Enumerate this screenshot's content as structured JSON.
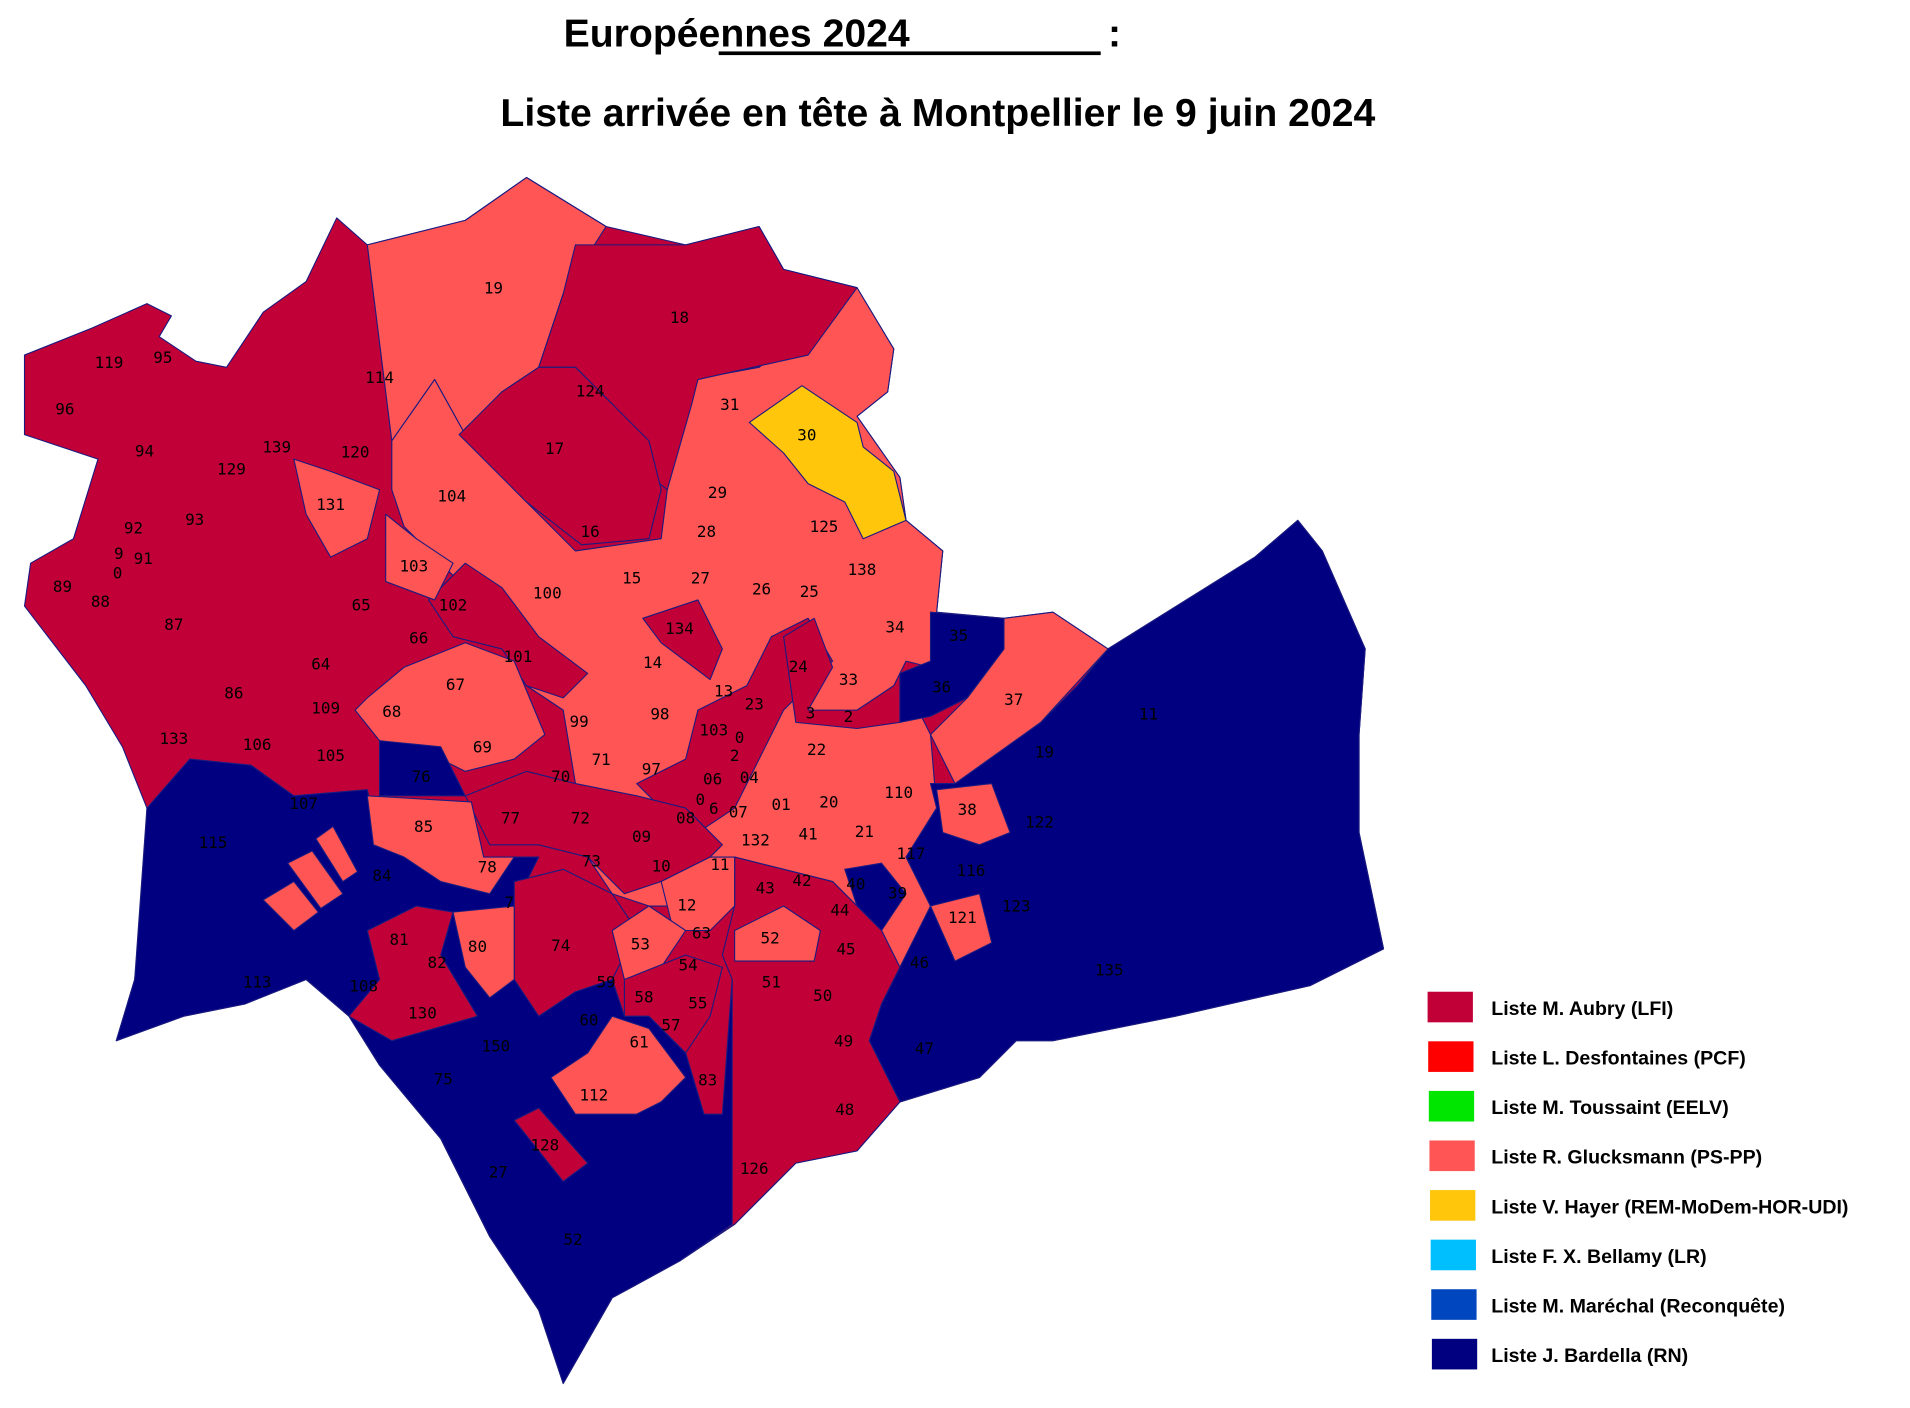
{
  "title": {
    "main": "Européennes 2024",
    "colon": " :",
    "subtitle": "Liste arrivée en tête à Montpellier le 9 juin 2024"
  },
  "legend": [
    {
      "label": "Liste M. Aubry (LFI)",
      "color": "#c10037"
    },
    {
      "label": "Liste L. Desfontaines (PCF)",
      "color": "#ff0000"
    },
    {
      "label": "Liste M. Toussaint (EELV)",
      "color": "#00e600"
    },
    {
      "label": "Liste R. Glucksmann (PS-PP)",
      "color": "#ff5555"
    },
    {
      "label": "Liste V. Hayer (REM-MoDem-HOR-UDI)",
      "color": "#ffc60c"
    },
    {
      "label": "Liste F. X. Bellamy (LR)",
      "color": "#00bfff"
    },
    {
      "label": "Liste M. Maréchal (Reconquête)",
      "color": "#0047bf"
    },
    {
      "label": "Liste J. Bardella (RN)",
      "color": "#000080"
    }
  ],
  "map": {
    "border_color": "#1a1a80",
    "precinct_labels": [
      "19",
      "18",
      "114",
      "124",
      "31",
      "30",
      "119",
      "95",
      "96",
      "17",
      "94",
      "139",
      "129",
      "120",
      "104",
      "131",
      "29",
      "92",
      "93",
      "16",
      "28",
      "125",
      "9",
      "91",
      "0",
      "103",
      "138",
      "27",
      "15",
      "26",
      "25",
      "89",
      "88",
      "100",
      "65",
      "102",
      "87",
      "134",
      "34",
      "35",
      "66",
      "101",
      "14",
      "24",
      "64",
      "33",
      "36",
      "86",
      "67",
      "13",
      "23",
      "3",
      "2",
      "37",
      "11",
      "109",
      "68",
      "99",
      "98",
      "103",
      "0",
      "133",
      "106",
      "105",
      "69",
      "71",
      "2",
      "97",
      "22",
      "19",
      "76",
      "70",
      "06",
      "04",
      "110",
      "107",
      "77",
      "72",
      "0",
      "6",
      "07",
      "01",
      "20",
      "38",
      "122",
      "85",
      "08",
      "21",
      "09",
      "41",
      "132",
      "117",
      "115",
      "78",
      "73",
      "10",
      "11",
      "84",
      "116",
      "43",
      "42",
      "40",
      "39",
      "44",
      "12",
      "123",
      "121",
      "7",
      "63",
      "52",
      "53",
      "81",
      "80",
      "74",
      "45",
      "82",
      "46",
      "135",
      "113",
      "54",
      "108",
      "59",
      "51",
      "58",
      "55",
      "50",
      "130",
      "60",
      "57",
      "49",
      "150",
      "61",
      "47",
      "83",
      "75",
      "112",
      "48",
      "128",
      "126",
      "27",
      "52"
    ]
  }
}
